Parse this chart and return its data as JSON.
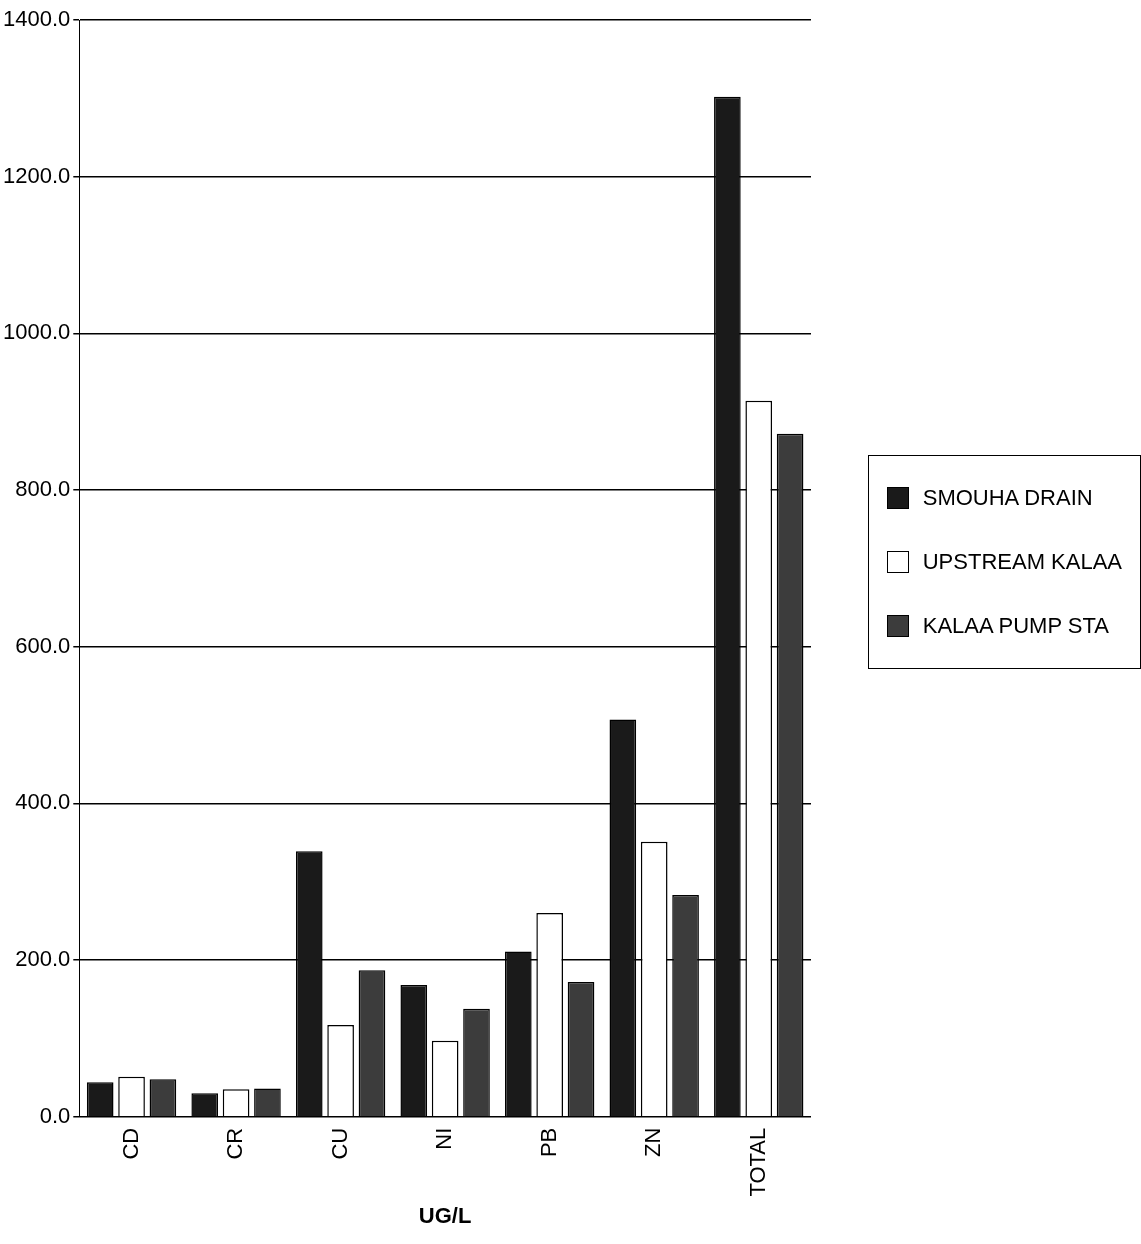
{
  "chart_data": {
    "type": "bar",
    "xlabel": "UG/L",
    "categories": [
      "CD",
      "CR",
      "CU",
      "NI",
      "PB",
      "ZN",
      "TOTAL"
    ],
    "series": [
      {
        "name": "SMOUHA DRAIN",
        "color": "#1a1a1a",
        "values": [
          44,
          30,
          339,
          168,
          211,
          507,
          1302
        ]
      },
      {
        "name": "UPSTREAM KALAA",
        "color": "#ffffff",
        "values": [
          51,
          35,
          117,
          97,
          260,
          351,
          914
        ]
      },
      {
        "name": "KALAA PUMP STA",
        "color": "#3c3c3c",
        "values": [
          48,
          36,
          187,
          138,
          172,
          283,
          872
        ]
      }
    ],
    "ylim": [
      0,
      1400
    ],
    "yticks": [
      {
        "value": 0,
        "label": "0.0"
      },
      {
        "value": 200,
        "label": "200.0"
      },
      {
        "value": 400,
        "label": "400.0"
      },
      {
        "value": 600,
        "label": "600.0"
      },
      {
        "value": 800,
        "label": "800.0"
      },
      {
        "value": 1000,
        "label": "1000.0"
      },
      {
        "value": 1200,
        "label": "1200.0"
      },
      {
        "value": 1400,
        "label": "1400.0"
      }
    ],
    "grid": "y",
    "legend": "right"
  }
}
